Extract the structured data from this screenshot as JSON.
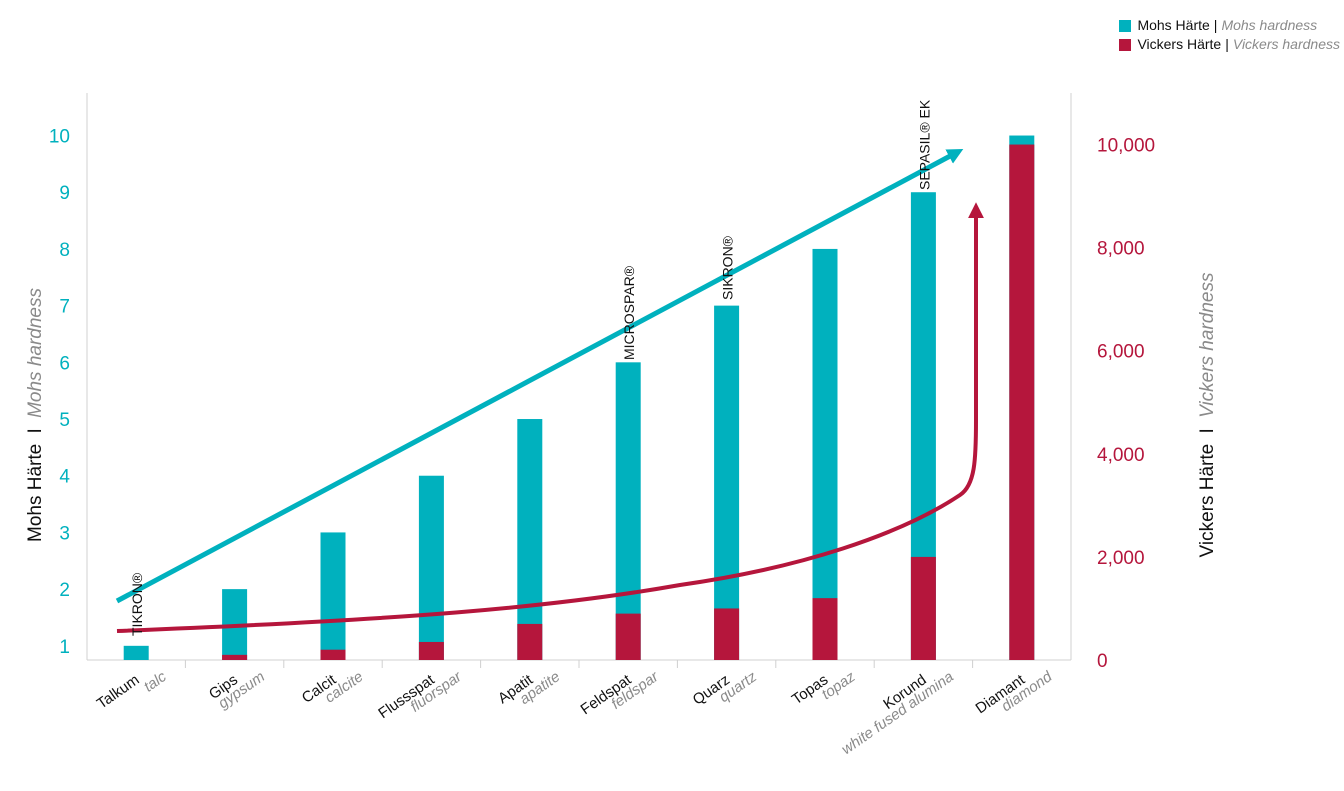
{
  "legend": {
    "mohs": {
      "label": "Mohs Härte",
      "label_alt": "Mohs hardness",
      "separator": "|"
    },
    "vickers": {
      "label": "Vickers Härte",
      "label_alt": "Vickers hardness",
      "separator": "|"
    }
  },
  "colors": {
    "mohs": "#00b1be",
    "vickers": "#b5163c",
    "grid": "#d0d0d0"
  },
  "chart_data": {
    "type": "bar",
    "categories": [
      {
        "label": "Talkum",
        "label_alt": "talc"
      },
      {
        "label": "Gips",
        "label_alt": "gypsum"
      },
      {
        "label": "Calcit",
        "label_alt": "calcite"
      },
      {
        "label": "Flussspat",
        "label_alt": "fluorspar"
      },
      {
        "label": "Apatit",
        "label_alt": "apatite"
      },
      {
        "label": "Feldspat",
        "label_alt": "feldspar"
      },
      {
        "label": "Quarz",
        "label_alt": "quartz"
      },
      {
        "label": "Topas",
        "label_alt": "topaz"
      },
      {
        "label": "Korund",
        "label_alt": "white fused alumina"
      },
      {
        "label": "Diamant",
        "label_alt": "diamond"
      }
    ],
    "series": [
      {
        "name": "Mohs Härte | Mohs hardness",
        "axis": "left",
        "values": [
          1,
          2,
          3,
          4,
          5,
          6,
          7,
          8,
          9,
          10
        ]
      },
      {
        "name": "Vickers Härte | Vickers hardness",
        "axis": "right",
        "values": [
          0,
          100,
          200,
          350,
          700,
          900,
          1000,
          1200,
          2000,
          10000
        ]
      }
    ],
    "y_left": {
      "label": "Mohs Härte",
      "label_alt": "Mohs hardness",
      "separator": "I",
      "ticks": [
        1,
        2,
        3,
        4,
        5,
        6,
        7,
        8,
        9,
        10
      ],
      "range": [
        0.75,
        10.75
      ]
    },
    "y_right": {
      "label": "Vickers Härte",
      "label_alt": "Vickers hardness",
      "separator": "I",
      "ticks": [
        0,
        2000,
        4000,
        6000,
        8000,
        10000
      ],
      "tick_labels": [
        "0",
        "2,000",
        "4,000",
        "6,000",
        "8,000",
        "10,000"
      ],
      "range": [
        0,
        11000
      ]
    },
    "annotations": [
      {
        "text": "TIKRON®",
        "category": "Talkum"
      },
      {
        "text": "MICROSPAR®",
        "category": "Feldspat"
      },
      {
        "text": "SIKRON®",
        "category": "Quarz"
      },
      {
        "text": "SEPASIL® EK",
        "category": "Korund"
      }
    ]
  }
}
